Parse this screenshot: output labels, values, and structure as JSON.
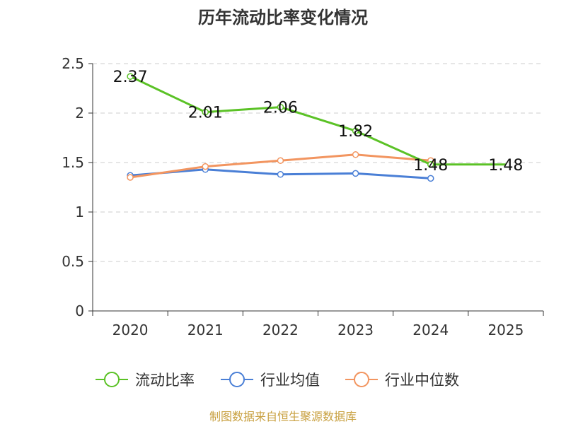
{
  "chart_data": {
    "type": "line",
    "title": "历年流动比率变化情况",
    "categories": [
      "2020",
      "2021",
      "2022",
      "2023",
      "2024",
      "2025"
    ],
    "ylim": [
      0,
      2.5
    ],
    "yticks": [
      "0",
      "0.5",
      "1",
      "1.5",
      "2",
      "2.5"
    ],
    "grid": true,
    "legend_position": "bottom",
    "series": [
      {
        "name": "流动比率",
        "color": "#5bc226",
        "values": [
          2.37,
          2.01,
          2.06,
          1.82,
          1.48,
          1.48
        ],
        "labels": [
          "2.37",
          "2.01",
          "2.06",
          "1.82",
          "1.48",
          "1.48"
        ],
        "show_labels": true
      },
      {
        "name": "行业均值",
        "color": "#4a7fd6",
        "values": [
          1.37,
          1.43,
          1.38,
          1.39,
          1.34,
          null
        ],
        "show_labels": false
      },
      {
        "name": "行业中位数",
        "color": "#f29560",
        "values": [
          1.35,
          1.46,
          1.52,
          1.58,
          1.52,
          null
        ],
        "show_labels": false
      }
    ]
  },
  "source": "制图数据来自恒生聚源数据库"
}
